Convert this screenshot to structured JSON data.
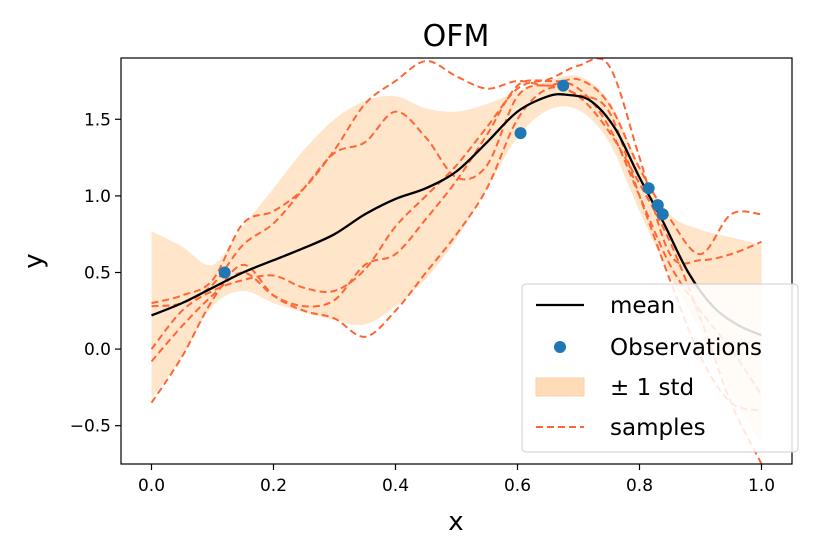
{
  "chart_data": {
    "type": "line",
    "title": "OFM",
    "xlabel": "x",
    "ylabel": "y",
    "xlim": [
      -0.05,
      1.05
    ],
    "ylim": [
      -0.75,
      1.9
    ],
    "xticks": [
      "0.0",
      "0.2",
      "0.4",
      "0.6",
      "0.8",
      "1.0"
    ],
    "yticks": [
      "−0.5",
      "0.0",
      "0.5",
      "1.0",
      "1.5"
    ],
    "grid": false,
    "legend_placement": "lower-right",
    "legend": [
      "mean",
      "Observations",
      "± 1 std",
      "samples"
    ],
    "colors": {
      "mean": "#000000",
      "observations": "#1f77b4",
      "std_band": "#ffdcb8",
      "samples": "#ff6633"
    },
    "mean": {
      "name": "mean",
      "x": [
        0.0,
        0.05,
        0.1,
        0.15,
        0.2,
        0.25,
        0.3,
        0.35,
        0.4,
        0.45,
        0.5,
        0.55,
        0.6,
        0.65,
        0.68,
        0.72,
        0.76,
        0.8,
        0.84,
        0.88,
        0.92,
        0.96,
        1.0
      ],
      "y": [
        0.22,
        0.3,
        0.4,
        0.5,
        0.58,
        0.66,
        0.75,
        0.88,
        0.98,
        1.05,
        1.16,
        1.35,
        1.55,
        1.65,
        1.66,
        1.62,
        1.44,
        1.12,
        0.82,
        0.5,
        0.28,
        0.16,
        0.09
      ]
    },
    "observations": {
      "name": "Observations",
      "x": [
        0.12,
        0.605,
        0.675,
        0.815,
        0.83,
        0.838
      ],
      "y": [
        0.5,
        1.41,
        1.72,
        1.05,
        0.94,
        0.88
      ]
    },
    "std_band": {
      "name": "± 1 std",
      "x": [
        0.0,
        0.05,
        0.1,
        0.15,
        0.2,
        0.25,
        0.3,
        0.35,
        0.4,
        0.45,
        0.5,
        0.55,
        0.6,
        0.65,
        0.7,
        0.75,
        0.8,
        0.85,
        0.9,
        0.95,
        1.0
      ],
      "upper": [
        0.77,
        0.67,
        0.55,
        0.8,
        1.05,
        1.3,
        1.5,
        1.62,
        1.65,
        1.57,
        1.55,
        1.6,
        1.68,
        1.75,
        1.78,
        1.62,
        1.2,
        0.88,
        0.78,
        0.73,
        0.68
      ],
      "lower": [
        -0.32,
        -0.05,
        0.28,
        0.38,
        0.3,
        0.24,
        0.19,
        0.16,
        0.28,
        0.46,
        0.72,
        1.05,
        1.38,
        1.56,
        1.56,
        1.35,
        0.9,
        0.48,
        0.12,
        -0.28,
        -0.62
      ]
    },
    "samples": [
      {
        "name": "samples",
        "x": [
          0.0,
          0.05,
          0.1,
          0.15,
          0.2,
          0.25,
          0.3,
          0.35,
          0.4,
          0.45,
          0.5,
          0.55,
          0.6,
          0.65,
          0.7,
          0.75,
          0.8,
          0.85,
          0.9,
          0.95,
          1.0
        ],
        "y": [
          0.3,
          0.35,
          0.45,
          0.82,
          0.9,
          1.05,
          1.3,
          1.6,
          1.75,
          1.88,
          1.78,
          1.7,
          1.75,
          1.72,
          1.76,
          1.6,
          1.18,
          0.85,
          0.62,
          0.88,
          0.88
        ]
      },
      {
        "name": "samples",
        "x": [
          0.0,
          0.05,
          0.1,
          0.15,
          0.2,
          0.25,
          0.3,
          0.35,
          0.4,
          0.45,
          0.5,
          0.55,
          0.6,
          0.65,
          0.7,
          0.75,
          0.8,
          0.85,
          0.9,
          0.95,
          1.0
        ],
        "y": [
          -0.08,
          0.15,
          0.35,
          0.5,
          0.35,
          0.28,
          0.32,
          0.55,
          0.62,
          0.85,
          1.1,
          1.4,
          1.72,
          1.76,
          1.85,
          1.85,
          1.25,
          0.62,
          0.58,
          0.62,
          0.7
        ]
      },
      {
        "name": "samples",
        "x": [
          0.0,
          0.05,
          0.1,
          0.15,
          0.2,
          0.25,
          0.3,
          0.35,
          0.4,
          0.45,
          0.5,
          0.55,
          0.6,
          0.65,
          0.7,
          0.75,
          0.8,
          0.85,
          0.9,
          0.95,
          1.0
        ],
        "y": [
          0.28,
          0.3,
          0.42,
          0.68,
          0.82,
          1.05,
          1.28,
          1.35,
          1.55,
          1.38,
          1.12,
          1.2,
          1.65,
          1.72,
          1.65,
          1.42,
          1.08,
          0.7,
          0.2,
          -0.35,
          -0.75
        ]
      },
      {
        "name": "samples",
        "x": [
          0.0,
          0.05,
          0.1,
          0.15,
          0.2,
          0.25,
          0.3,
          0.35,
          0.4,
          0.45,
          0.5,
          0.55,
          0.6,
          0.65,
          0.7,
          0.75,
          0.8,
          0.85,
          0.9,
          0.95,
          1.0
        ],
        "y": [
          -0.35,
          -0.05,
          0.32,
          0.55,
          0.35,
          0.25,
          0.2,
          0.08,
          0.25,
          0.5,
          0.75,
          1.05,
          1.5,
          1.7,
          1.66,
          1.55,
          1.0,
          0.45,
          -0.05,
          -0.35,
          -0.4
        ]
      },
      {
        "name": "samples",
        "x": [
          0.0,
          0.05,
          0.1,
          0.15,
          0.2,
          0.25,
          0.3,
          0.35,
          0.4,
          0.45,
          0.5,
          0.55,
          0.6,
          0.65,
          0.7,
          0.75,
          0.8,
          0.85,
          0.9,
          0.95,
          1.0
        ],
        "y": [
          0.0,
          0.25,
          0.38,
          0.45,
          0.48,
          0.4,
          0.38,
          0.52,
          0.8,
          1.0,
          1.2,
          1.45,
          1.7,
          1.75,
          1.7,
          1.45,
          1.0,
          0.55,
          0.25,
          0.0,
          -0.3
        ]
      }
    ]
  }
}
